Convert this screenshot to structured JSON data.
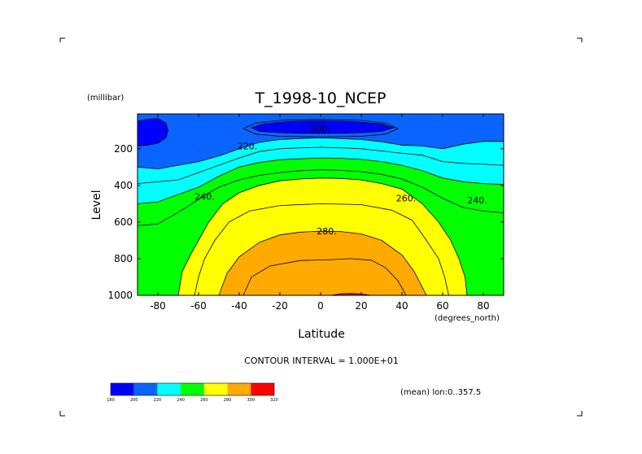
{
  "chart_data": {
    "type": "contour",
    "title": "T_1998-10_NCEP",
    "xlabel": "Latitude",
    "x_units": "(degrees_north)",
    "ylabel": "Level",
    "y_units": "(millibar)",
    "xlim": [
      -90,
      90
    ],
    "ylim": [
      1000,
      10
    ],
    "y_inverted": true,
    "x_ticks": [
      "-80",
      "-60",
      "-40",
      "-20",
      "0",
      "20",
      "40",
      "60",
      "80"
    ],
    "x_tick_values": [
      -80,
      -60,
      -40,
      -20,
      0,
      20,
      40,
      60,
      80
    ],
    "y_ticks": [
      "200",
      "400",
      "600",
      "800",
      "1000"
    ],
    "y_tick_values": [
      200,
      400,
      600,
      800,
      1000
    ],
    "contour_interval_text": "CONTOUR INTERVAL = 1.000E+01",
    "footer_text": "(mean) lon:0..357.5",
    "contour_labels": [
      {
        "text": "200.",
        "lat": 0,
        "lev": 90
      },
      {
        "text": "220.",
        "lat": -36,
        "lev": 185
      },
      {
        "text": "240.",
        "lat": -57,
        "lev": 460
      },
      {
        "text": "240.",
        "lat": 77,
        "lev": 480
      },
      {
        "text": "260.",
        "lat": 42,
        "lev": 470
      },
      {
        "text": "280.",
        "lat": 3,
        "lev": 650
      }
    ],
    "levels": [
      180,
      200,
      220,
      240,
      260,
      280,
      300,
      320
    ],
    "colors": [
      "#0000ff",
      "#0a64ff",
      "#00ffff",
      "#00ff00",
      "#ffff00",
      "#ffaa00",
      "#ff0000"
    ],
    "colorbar_labels": [
      "180",
      "200",
      "220",
      "240",
      "260",
      "280",
      "300",
      "320"
    ],
    "regions": [
      {
        "name": "temp-200-220",
        "color": "#0a64ff",
        "top_lev": 10,
        "poly": []
      },
      {
        "name": "temp-220-240",
        "color": "#00ffff",
        "poly": [
          [
            -90,
            300
          ],
          [
            -80,
            310
          ],
          [
            -70,
            290
          ],
          [
            -60,
            270
          ],
          [
            -50,
            240
          ],
          [
            -40,
            200
          ],
          [
            -30,
            165
          ],
          [
            -20,
            150
          ],
          [
            -10,
            145
          ],
          [
            0,
            140
          ],
          [
            10,
            145
          ],
          [
            20,
            150
          ],
          [
            30,
            162
          ],
          [
            40,
            180
          ],
          [
            50,
            185
          ],
          [
            60,
            200
          ],
          [
            70,
            175
          ],
          [
            80,
            160
          ],
          [
            90,
            160
          ],
          [
            90,
            1000
          ],
          [
            -90,
            1000
          ]
        ]
      },
      {
        "name": "temp-240-260",
        "color": "#00ff00",
        "poly": [
          [
            -90,
            500
          ],
          [
            -80,
            490
          ],
          [
            -70,
            450
          ],
          [
            -60,
            410
          ],
          [
            -50,
            350
          ],
          [
            -40,
            300
          ],
          [
            -30,
            275
          ],
          [
            -20,
            260
          ],
          [
            -10,
            255
          ],
          [
            0,
            250
          ],
          [
            10,
            252
          ],
          [
            20,
            258
          ],
          [
            30,
            270
          ],
          [
            40,
            290
          ],
          [
            50,
            320
          ],
          [
            60,
            360
          ],
          [
            70,
            380
          ],
          [
            80,
            390
          ],
          [
            90,
            395
          ],
          [
            90,
            1000
          ],
          [
            -90,
            1000
          ]
        ]
      },
      {
        "name": "temp-260-280",
        "color": "#ffff00",
        "poly": [
          [
            -70,
            1000
          ],
          [
            -68,
            870
          ],
          [
            -64,
            780
          ],
          [
            -60,
            700
          ],
          [
            -55,
            600
          ],
          [
            -48,
            500
          ],
          [
            -40,
            440
          ],
          [
            -30,
            400
          ],
          [
            -20,
            375
          ],
          [
            -10,
            365
          ],
          [
            0,
            360
          ],
          [
            10,
            362
          ],
          [
            20,
            370
          ],
          [
            30,
            390
          ],
          [
            40,
            420
          ],
          [
            50,
            500
          ],
          [
            58,
            600
          ],
          [
            64,
            700
          ],
          [
            68,
            800
          ],
          [
            71,
            900
          ],
          [
            72,
            1000
          ]
        ]
      },
      {
        "name": "temp-280-300",
        "color": "#ffaa00",
        "poly": [
          [
            -50,
            1000
          ],
          [
            -46,
            880
          ],
          [
            -40,
            790
          ],
          [
            -30,
            710
          ],
          [
            -20,
            670
          ],
          [
            -10,
            655
          ],
          [
            0,
            650
          ],
          [
            10,
            652
          ],
          [
            20,
            665
          ],
          [
            30,
            700
          ],
          [
            40,
            780
          ],
          [
            46,
            870
          ],
          [
            52,
            1000
          ]
        ]
      },
      {
        "name": "temp-180-200-band",
        "color": "#0000ff",
        "poly": [
          [
            -34,
            85
          ],
          [
            -28,
            65
          ],
          [
            -20,
            55
          ],
          [
            -10,
            50
          ],
          [
            0,
            48
          ],
          [
            10,
            50
          ],
          [
            20,
            55
          ],
          [
            30,
            65
          ],
          [
            36,
            85
          ],
          [
            30,
            105
          ],
          [
            20,
            112
          ],
          [
            10,
            115
          ],
          [
            0,
            116
          ],
          [
            -10,
            115
          ],
          [
            -20,
            112
          ],
          [
            -30,
            105
          ]
        ]
      },
      {
        "name": "temp-180-200-southpole",
        "color": "#0000ff",
        "poly": [
          [
            -90,
            50
          ],
          [
            -85,
            40
          ],
          [
            -80,
            35
          ],
          [
            -76,
            60
          ],
          [
            -75,
            100
          ],
          [
            -76,
            140
          ],
          [
            -80,
            170
          ],
          [
            -85,
            180
          ],
          [
            -90,
            185
          ]
        ]
      },
      {
        "name": "temp-300-310",
        "color": "#ff0000",
        "poly": [
          [
            5,
            1000
          ],
          [
            10,
            992
          ],
          [
            15,
            990
          ],
          [
            20,
            993
          ],
          [
            25,
            1000
          ]
        ]
      }
    ],
    "extra_lines": [
      {
        "name": "isotherm-210",
        "poly": [
          [
            -38,
            90
          ],
          [
            -32,
            60
          ],
          [
            -20,
            45
          ],
          [
            0,
            40
          ],
          [
            20,
            45
          ],
          [
            32,
            60
          ],
          [
            38,
            90
          ],
          [
            32,
            120
          ],
          [
            20,
            132
          ],
          [
            0,
            136
          ],
          [
            -20,
            132
          ],
          [
            -32,
            120
          ],
          [
            -38,
            90
          ]
        ]
      },
      {
        "name": "isotherm-230",
        "poly": [
          [
            -90,
            390
          ],
          [
            -70,
            370
          ],
          [
            -60,
            330
          ],
          [
            -50,
            290
          ],
          [
            -40,
            250
          ],
          [
            -30,
            215
          ],
          [
            -20,
            200
          ],
          [
            -10,
            195
          ],
          [
            0,
            192
          ],
          [
            10,
            195
          ],
          [
            20,
            200
          ],
          [
            30,
            212
          ],
          [
            40,
            225
          ],
          [
            50,
            235
          ],
          [
            60,
            270
          ],
          [
            70,
            280
          ],
          [
            80,
            285
          ],
          [
            90,
            290
          ]
        ]
      },
      {
        "name": "isotherm-250",
        "poly": [
          [
            -90,
            620
          ],
          [
            -80,
            610
          ],
          [
            -72,
            560
          ],
          [
            -66,
            520
          ],
          [
            -58,
            460
          ],
          [
            -50,
            410
          ],
          [
            -40,
            370
          ],
          [
            -30,
            345
          ],
          [
            -20,
            330
          ],
          [
            -10,
            320
          ],
          [
            0,
            315
          ],
          [
            10,
            318
          ],
          [
            20,
            325
          ],
          [
            30,
            340
          ],
          [
            40,
            365
          ],
          [
            50,
            410
          ],
          [
            60,
            470
          ],
          [
            70,
            520
          ],
          [
            80,
            540
          ],
          [
            90,
            550
          ]
        ]
      },
      {
        "name": "isotherm-270",
        "poly": [
          [
            -62,
            1000
          ],
          [
            -60,
            900
          ],
          [
            -57,
            800
          ],
          [
            -52,
            700
          ],
          [
            -45,
            600
          ],
          [
            -35,
            540
          ],
          [
            -20,
            510
          ],
          [
            0,
            500
          ],
          [
            20,
            505
          ],
          [
            35,
            535
          ],
          [
            45,
            590
          ],
          [
            52,
            700
          ],
          [
            58,
            800
          ],
          [
            61,
            900
          ],
          [
            63,
            1000
          ]
        ]
      },
      {
        "name": "isotherm-290",
        "poly": [
          [
            -38,
            1000
          ],
          [
            -34,
            900
          ],
          [
            -25,
            840
          ],
          [
            -10,
            810
          ],
          [
            5,
            805
          ],
          [
            15,
            800
          ],
          [
            25,
            808
          ],
          [
            32,
            850
          ],
          [
            38,
            920
          ],
          [
            42,
            1000
          ]
        ]
      }
    ]
  },
  "corner_marks": [
    "top-left",
    "top-right",
    "bottom-left",
    "bottom-right"
  ]
}
